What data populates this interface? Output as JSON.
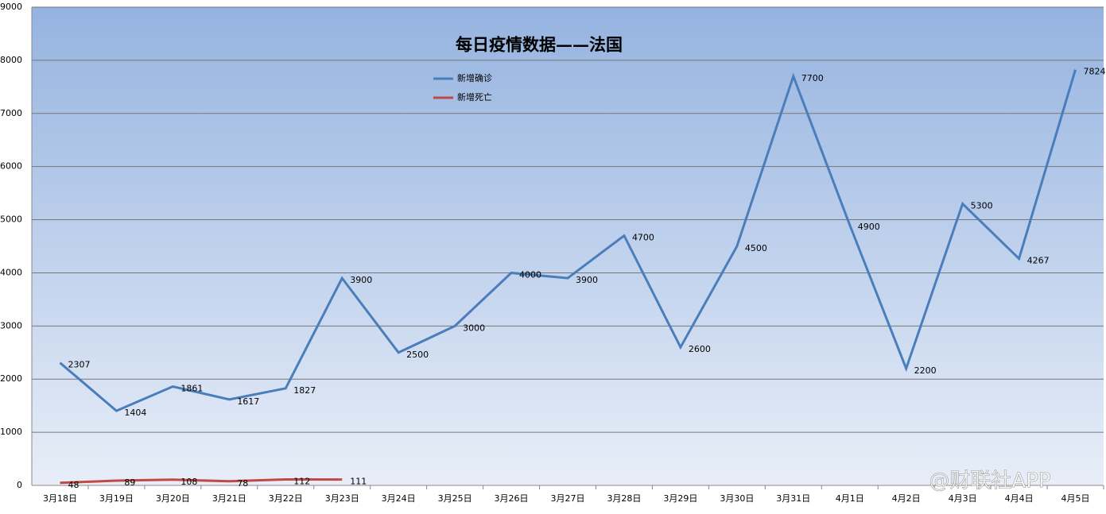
{
  "chart_data": {
    "type": "line",
    "title": "每日疫情数据——法国",
    "categories": [
      "3月18日",
      "3月19日",
      "3月20日",
      "3月21日",
      "3月22日",
      "3月23日",
      "3月24日",
      "3月25日",
      "3月26日",
      "3月27日",
      "3月28日",
      "3月29日",
      "3月30日",
      "3月31日",
      "4月1日",
      "4月2日",
      "4月3日",
      "4月4日",
      "4月5日"
    ],
    "series": [
      {
        "name": "新增确诊",
        "color": "#4a7ebb",
        "values": [
          2307,
          1404,
          1861,
          1617,
          1827,
          3900,
          2500,
          3000,
          4000,
          3900,
          4700,
          2600,
          4500,
          7700,
          4900,
          2200,
          5300,
          4267,
          7824
        ]
      },
      {
        "name": "新增死亡",
        "color": "#be4b48",
        "values": [
          48,
          89,
          108,
          78,
          112,
          111,
          null,
          null,
          null,
          null,
          null,
          null,
          null,
          null,
          null,
          null,
          null,
          null,
          null
        ]
      }
    ],
    "ylim": [
      0,
      9000
    ],
    "yticks": [
      0,
      1000,
      2000,
      3000,
      4000,
      5000,
      6000,
      7000,
      8000,
      9000
    ],
    "grid": true,
    "watermark": "@财联社APP"
  }
}
